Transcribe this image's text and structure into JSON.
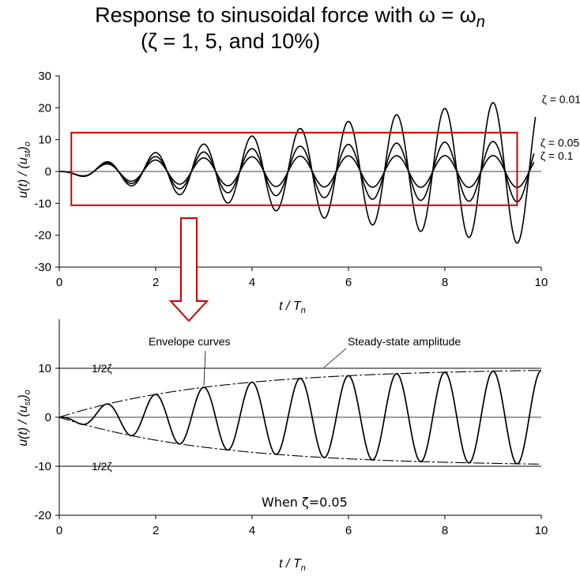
{
  "chart_data": [
    {
      "type": "line",
      "title_line1": "Response to sinusoidal force with ω = ω",
      "title_sub": "n",
      "title_line2": "(ζ = 1, 5, and 10%)",
      "xlabel": "t / T",
      "xlabel_sub": "n",
      "ylabel": "u(t) / (u",
      "ylabel_sub": "st",
      "ylabel_end": ")",
      "ylabel_sub2": "o",
      "xlim": [
        0,
        10
      ],
      "ylim": [
        -30,
        30
      ],
      "xticks": [
        "0",
        "2",
        "4",
        "6",
        "8",
        "10"
      ],
      "yticks": [
        "-30",
        "-20",
        "-10",
        "0",
        "10",
        "20",
        "30"
      ],
      "series": [
        {
          "name": "ζ = 0.01",
          "zeta": 0.01,
          "t_end": 9.88,
          "end_value": 22.7
        },
        {
          "name": "ζ = 0.05",
          "zeta": 0.05,
          "t_end": 9.85,
          "end_value": 9.0
        },
        {
          "name": "ζ = 0.1",
          "zeta": 0.1,
          "t_end": 9.85,
          "end_value": 5.0
        }
      ],
      "highlight_box": {
        "x": [
          0.25,
          9.5
        ],
        "y": [
          -10.6,
          12.2
        ],
        "color": "#cc0000"
      }
    },
    {
      "type": "line",
      "xlabel": "t / T",
      "xlabel_sub": "n",
      "ylabel": "u(t) / (u",
      "ylabel_sub": "st",
      "ylabel_end": ")",
      "ylabel_sub2": "o",
      "xlim": [
        0,
        10
      ],
      "ylim": [
        -20,
        20
      ],
      "xticks": [
        "0",
        "2",
        "4",
        "6",
        "8",
        "10"
      ],
      "yticks": [
        "-20",
        "-10",
        "0",
        "10"
      ],
      "zeta": 0.05,
      "steady_state_level": 10,
      "level_label_upper": "1/2ζ",
      "level_label_lower": "1/2ζ",
      "annotations": [
        "Envelope curves",
        "Steady-state amplitude"
      ],
      "note": "When ζ=0.05"
    }
  ],
  "arrow_color": "#cc0000"
}
